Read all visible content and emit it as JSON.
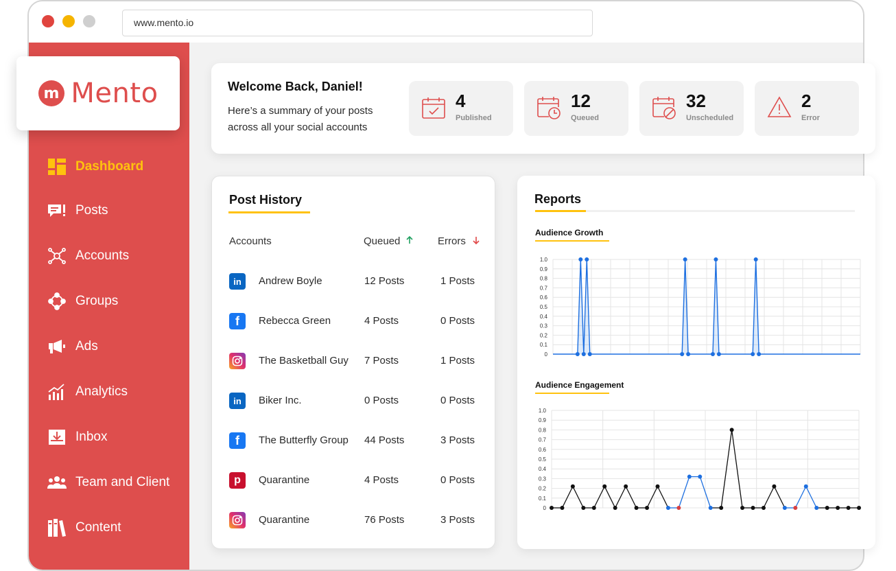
{
  "browser": {
    "url": "www.mento.io"
  },
  "brand": {
    "name": "Mento",
    "logo_letter": "m",
    "color": "#de4e4d",
    "accent": "#ffc20e"
  },
  "sidebar": {
    "items": [
      {
        "label": "Dashboard",
        "icon": "dashboard-icon",
        "active": true
      },
      {
        "label": "Posts",
        "icon": "posts-icon"
      },
      {
        "label": "Accounts",
        "icon": "accounts-icon"
      },
      {
        "label": "Groups",
        "icon": "groups-icon"
      },
      {
        "label": "Ads",
        "icon": "megaphone-icon"
      },
      {
        "label": "Analytics",
        "icon": "analytics-icon"
      },
      {
        "label": "Inbox",
        "icon": "inbox-icon"
      },
      {
        "label": "Team and Client",
        "icon": "team-icon"
      },
      {
        "label": "Content",
        "icon": "content-icon"
      }
    ]
  },
  "welcome": {
    "title": "Welcome Back, Daniel!",
    "subtitle": "Here’s a summary of your posts across all your social accounts",
    "stats": [
      {
        "value": "4",
        "label": "Published",
        "icon": "calendar-check-icon"
      },
      {
        "value": "12",
        "label": "Queued",
        "icon": "calendar-clock-icon"
      },
      {
        "value": "32",
        "label": "Unscheduled",
        "icon": "calendar-cancel-icon"
      },
      {
        "value": "2",
        "label": "Error",
        "icon": "warning-icon"
      }
    ]
  },
  "history": {
    "title": "Post History",
    "columns": {
      "accounts": "Accounts",
      "queued": "Queued",
      "errors": "Errors"
    },
    "rows": [
      {
        "network": "linkedin",
        "account": "Andrew Boyle",
        "queued": "12 Posts",
        "errors": "1 Posts"
      },
      {
        "network": "facebook",
        "account": "Rebecca Green",
        "queued": "4 Posts",
        "errors": "0 Posts"
      },
      {
        "network": "instagram",
        "account": "The Basketball Guy",
        "queued": "7 Posts",
        "errors": "1 Posts"
      },
      {
        "network": "linkedin",
        "account": "Biker Inc.",
        "queued": "0 Posts",
        "errors": "0 Posts"
      },
      {
        "network": "facebook",
        "account": "The Butterfly Group",
        "queued": "44 Posts",
        "errors": "3 Posts"
      },
      {
        "network": "pinterest",
        "account": "Quarantine",
        "queued": "4 Posts",
        "errors": "0 Posts"
      },
      {
        "network": "instagram",
        "account": "Quarantine",
        "queued": "76 Posts",
        "errors": "3 Posts"
      }
    ]
  },
  "reports": {
    "title": "Reports",
    "growth_title": "Audience Growth",
    "engagement_title": "Audience Engagement"
  },
  "chart_data": [
    {
      "type": "area",
      "title": "Audience Growth",
      "ylim": [
        0,
        1
      ],
      "yticks": [
        "0",
        "0.1",
        "0.2",
        "0.3",
        "0.4",
        "0.5",
        "0.6",
        "0.7",
        "0.8",
        "0.9",
        "1.0"
      ],
      "grid": true,
      "color": "#1d6fe0",
      "x": [
        0,
        8,
        9,
        10,
        11,
        12,
        13,
        42,
        43,
        44,
        52,
        53,
        54,
        65,
        66,
        67,
        100
      ],
      "values": [
        0,
        0,
        1,
        0,
        1,
        0,
        0,
        0,
        1,
        0,
        0,
        1,
        0,
        0,
        1,
        0,
        0
      ],
      "marker_x": [
        8,
        9,
        10,
        11,
        12,
        42,
        43,
        44,
        52,
        53,
        54,
        65,
        66,
        67
      ]
    },
    {
      "type": "line",
      "title": "Audience Engagement",
      "ylim": [
        0,
        1
      ],
      "yticks": [
        "0",
        "0.1",
        "0.2",
        "0.3",
        "0.4",
        "0.5",
        "0.6",
        "0.7",
        "0.8",
        "0.9",
        "1.0"
      ],
      "grid": true,
      "x": [
        0,
        1,
        2,
        3,
        4,
        5,
        6,
        7,
        8,
        9,
        10,
        11,
        12,
        13,
        14,
        15,
        16,
        17,
        18,
        19,
        20,
        21,
        22,
        23,
        24,
        25,
        26,
        27,
        28,
        29
      ],
      "values": [
        0,
        0,
        0.22,
        0,
        0,
        0.22,
        0,
        0.22,
        0,
        0,
        0.22,
        0,
        0,
        0.32,
        0.32,
        0,
        0,
        0.8,
        0,
        0,
        0,
        0.22,
        0,
        0,
        0.22,
        0,
        0,
        0,
        0,
        0
      ],
      "colors": [
        "#111",
        "#111",
        "#111",
        "#111",
        "#111",
        "#111",
        "#111",
        "#111",
        "#111",
        "#111",
        "#111",
        "#1d6fe0",
        "#d94040",
        "#1d6fe0",
        "#1d6fe0",
        "#1d6fe0",
        "#111",
        "#111",
        "#111",
        "#111",
        "#111",
        "#111",
        "#1d6fe0",
        "#d94040",
        "#1d6fe0",
        "#1d6fe0",
        "#111",
        "#111",
        "#111",
        "#111"
      ]
    }
  ]
}
